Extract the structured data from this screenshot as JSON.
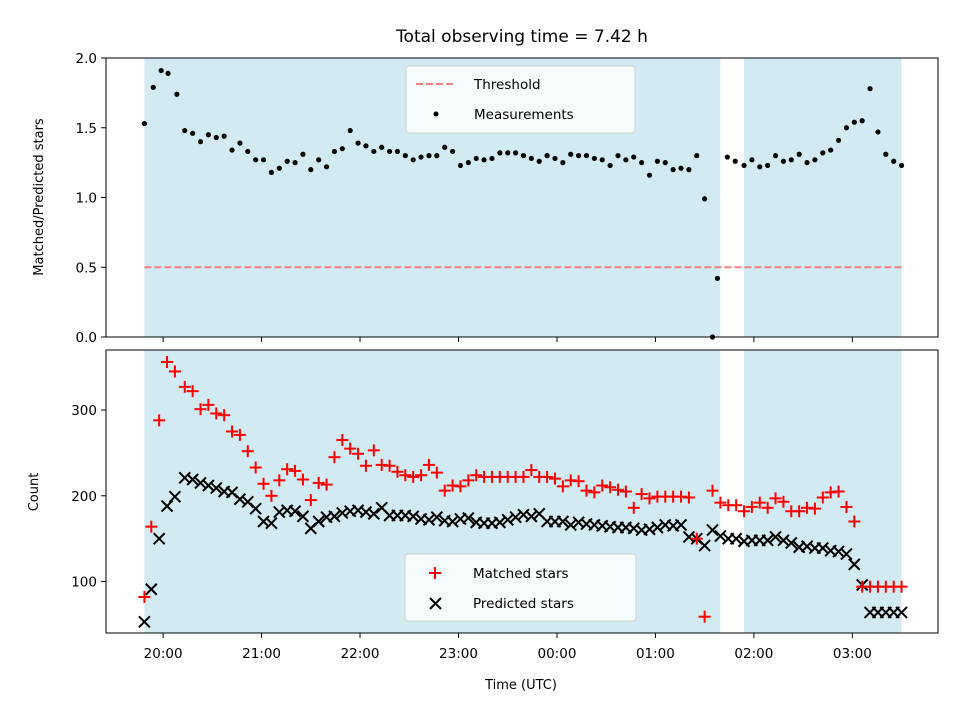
{
  "chart_data": [
    {
      "type": "scatter",
      "title": "Total observing time = 7.42 h",
      "ylabel": "Matched/Predicted stars",
      "xlabel": "",
      "xlim": [
        -0.58,
        7.87
      ],
      "ylim": [
        0.0,
        2.0
      ],
      "yticks": [
        "0.0",
        "0.5",
        "1.0",
        "1.5",
        "2.0"
      ],
      "legend_position": "upper-center",
      "threshold": {
        "name": "Threshold",
        "value": 0.5,
        "color": "#f08080",
        "style": "dashed"
      },
      "shaded_intervals": [
        [
          -0.19,
          5.66
        ],
        [
          5.9,
          7.5
        ]
      ],
      "shade_color": "#add8e6",
      "series": [
        {
          "name": "Measurements",
          "color": "#000000",
          "marker": "dot",
          "x": [
            -0.19,
            -0.1,
            -0.02,
            0.05,
            0.14,
            0.22,
            0.3,
            0.38,
            0.46,
            0.54,
            0.62,
            0.7,
            0.78,
            0.86,
            0.94,
            1.02,
            1.1,
            1.18,
            1.26,
            1.34,
            1.42,
            1.5,
            1.58,
            1.66,
            1.74,
            1.82,
            1.9,
            1.98,
            2.06,
            2.14,
            2.22,
            2.3,
            2.38,
            2.46,
            2.54,
            2.62,
            2.7,
            2.78,
            2.86,
            2.94,
            3.02,
            3.1,
            3.18,
            3.26,
            3.34,
            3.42,
            3.5,
            3.58,
            3.66,
            3.74,
            3.82,
            3.9,
            3.98,
            4.06,
            4.14,
            4.22,
            4.3,
            4.38,
            4.46,
            4.54,
            4.62,
            4.7,
            4.78,
            4.86,
            4.94,
            5.02,
            5.1,
            5.18,
            5.26,
            5.34,
            5.42,
            5.5,
            5.58,
            5.63,
            5.73,
            5.81,
            5.9,
            5.98,
            6.06,
            6.14,
            6.22,
            6.3,
            6.38,
            6.46,
            6.54,
            6.62,
            6.7,
            6.78,
            6.86,
            6.94,
            7.02,
            7.1,
            7.18,
            7.26,
            7.34,
            7.42,
            7.5
          ],
          "y": [
            1.53,
            1.79,
            1.91,
            1.89,
            1.74,
            1.48,
            1.46,
            1.4,
            1.45,
            1.43,
            1.44,
            1.34,
            1.39,
            1.33,
            1.27,
            1.27,
            1.18,
            1.21,
            1.26,
            1.25,
            1.31,
            1.2,
            1.27,
            1.22,
            1.33,
            1.35,
            1.48,
            1.39,
            1.37,
            1.33,
            1.36,
            1.33,
            1.33,
            1.3,
            1.27,
            1.29,
            1.3,
            1.3,
            1.36,
            1.33,
            1.23,
            1.25,
            1.28,
            1.27,
            1.28,
            1.32,
            1.32,
            1.32,
            1.3,
            1.28,
            1.26,
            1.3,
            1.28,
            1.25,
            1.31,
            1.3,
            1.3,
            1.28,
            1.27,
            1.23,
            1.3,
            1.27,
            1.29,
            1.25,
            1.16,
            1.26,
            1.25,
            1.2,
            1.21,
            1.2,
            1.3,
            0.99,
            0.0,
            0.42,
            1.29,
            1.26,
            1.23,
            1.27,
            1.22,
            1.23,
            1.3,
            1.26,
            1.27,
            1.31,
            1.25,
            1.27,
            1.32,
            1.34,
            1.41,
            1.5,
            1.54,
            1.55,
            1.78,
            1.47,
            1.31,
            1.26,
            1.23
          ]
        }
      ]
    },
    {
      "type": "scatter",
      "title": "",
      "ylabel": "Count",
      "xlabel": "Time (UTC)",
      "xlim": [
        -0.58,
        7.87
      ],
      "ylim": [
        40,
        370
      ],
      "yticks": [
        "100",
        "200",
        "300"
      ],
      "xticks": [
        "20:00",
        "21:00",
        "22:00",
        "23:00",
        "00:00",
        "01:00",
        "02:00",
        "03:00"
      ],
      "legend_position": "lower-center",
      "shaded_intervals": [
        [
          -0.19,
          5.66
        ],
        [
          5.9,
          7.5
        ]
      ],
      "shade_color": "#add8e6",
      "series": [
        {
          "name": "Matched stars",
          "color": "#ff0000",
          "marker": "plus",
          "x": [
            -0.19,
            -0.12,
            -0.04,
            0.04,
            0.12,
            0.22,
            0.3,
            0.38,
            0.46,
            0.54,
            0.62,
            0.7,
            0.78,
            0.86,
            0.94,
            1.02,
            1.1,
            1.18,
            1.26,
            1.34,
            1.42,
            1.5,
            1.58,
            1.66,
            1.74,
            1.82,
            1.9,
            1.98,
            2.06,
            2.14,
            2.22,
            2.3,
            2.38,
            2.46,
            2.54,
            2.62,
            2.7,
            2.78,
            2.86,
            2.94,
            3.02,
            3.1,
            3.18,
            3.26,
            3.34,
            3.42,
            3.5,
            3.58,
            3.66,
            3.74,
            3.82,
            3.9,
            3.98,
            4.06,
            4.14,
            4.22,
            4.3,
            4.38,
            4.46,
            4.54,
            4.62,
            4.7,
            4.78,
            4.86,
            4.94,
            5.02,
            5.1,
            5.18,
            5.26,
            5.34,
            5.42,
            5.5,
            5.58,
            5.66,
            5.74,
            5.82,
            5.9,
            5.98,
            6.06,
            6.14,
            6.22,
            6.3,
            6.38,
            6.46,
            6.54,
            6.62,
            6.7,
            6.78,
            6.86,
            6.94,
            7.02,
            7.1,
            7.18,
            7.26,
            7.34,
            7.42,
            7.5
          ],
          "y": [
            82,
            164,
            288,
            356,
            345,
            327,
            322,
            301,
            306,
            296,
            294,
            275,
            271,
            252,
            233,
            214,
            200,
            218,
            231,
            229,
            219,
            195,
            215,
            213,
            245,
            265,
            255,
            249,
            235,
            253,
            236,
            235,
            228,
            224,
            222,
            224,
            236,
            227,
            206,
            212,
            211,
            218,
            224,
            222,
            222,
            222,
            222,
            222,
            222,
            230,
            222,
            222,
            220,
            211,
            218,
            217,
            206,
            204,
            212,
            210,
            207,
            205,
            186,
            202,
            197,
            199,
            199,
            199,
            199,
            198,
            150,
            59,
            206,
            192,
            189,
            189,
            182,
            187,
            192,
            186,
            197,
            193,
            182,
            182,
            186,
            185,
            198,
            204,
            205,
            187,
            170,
            94,
            94,
            94,
            94,
            94,
            94
          ],
          "note_trimmed": true
        },
        {
          "name": "Predicted stars",
          "color": "#000000",
          "marker": "x",
          "x": [
            -0.19,
            -0.12,
            -0.04,
            0.04,
            0.12,
            0.22,
            0.3,
            0.38,
            0.46,
            0.54,
            0.62,
            0.7,
            0.78,
            0.86,
            0.94,
            1.02,
            1.1,
            1.18,
            1.26,
            1.34,
            1.42,
            1.5,
            1.58,
            1.66,
            1.74,
            1.82,
            1.9,
            1.98,
            2.06,
            2.14,
            2.22,
            2.3,
            2.38,
            2.46,
            2.54,
            2.62,
            2.7,
            2.78,
            2.86,
            2.94,
            3.02,
            3.1,
            3.18,
            3.26,
            3.34,
            3.42,
            3.5,
            3.58,
            3.66,
            3.74,
            3.82,
            3.9,
            3.98,
            4.06,
            4.14,
            4.22,
            4.3,
            4.38,
            4.46,
            4.54,
            4.62,
            4.7,
            4.78,
            4.86,
            4.94,
            5.02,
            5.1,
            5.18,
            5.26,
            5.34,
            5.42,
            5.5,
            5.58,
            5.66,
            5.74,
            5.82,
            5.9,
            5.98,
            6.06,
            6.14,
            6.22,
            6.3,
            6.38,
            6.46,
            6.54,
            6.62,
            6.7,
            6.78,
            6.86,
            6.94,
            7.02,
            7.1,
            7.18,
            7.26,
            7.34,
            7.42,
            7.5
          ],
          "y": [
            53,
            91,
            150,
            188,
            199,
            221,
            219,
            215,
            212,
            209,
            205,
            204,
            196,
            193,
            185,
            170,
            168,
            181,
            183,
            182,
            176,
            162,
            170,
            175,
            176,
            180,
            182,
            183,
            181,
            179,
            186,
            177,
            177,
            177,
            176,
            173,
            172,
            175,
            171,
            170,
            173,
            174,
            169,
            168,
            168,
            169,
            172,
            175,
            178,
            176,
            179,
            170,
            170,
            170,
            166,
            169,
            167,
            166,
            165,
            164,
            163,
            163,
            162,
            160,
            161,
            163,
            166,
            165,
            166,
            152,
            150,
            142,
            160,
            153,
            150,
            150,
            147,
            148,
            148,
            148,
            152,
            148,
            145,
            140,
            141,
            139,
            139,
            136,
            135,
            132,
            120,
            96,
            64,
            64,
            64,
            64,
            64
          ]
        }
      ]
    }
  ]
}
